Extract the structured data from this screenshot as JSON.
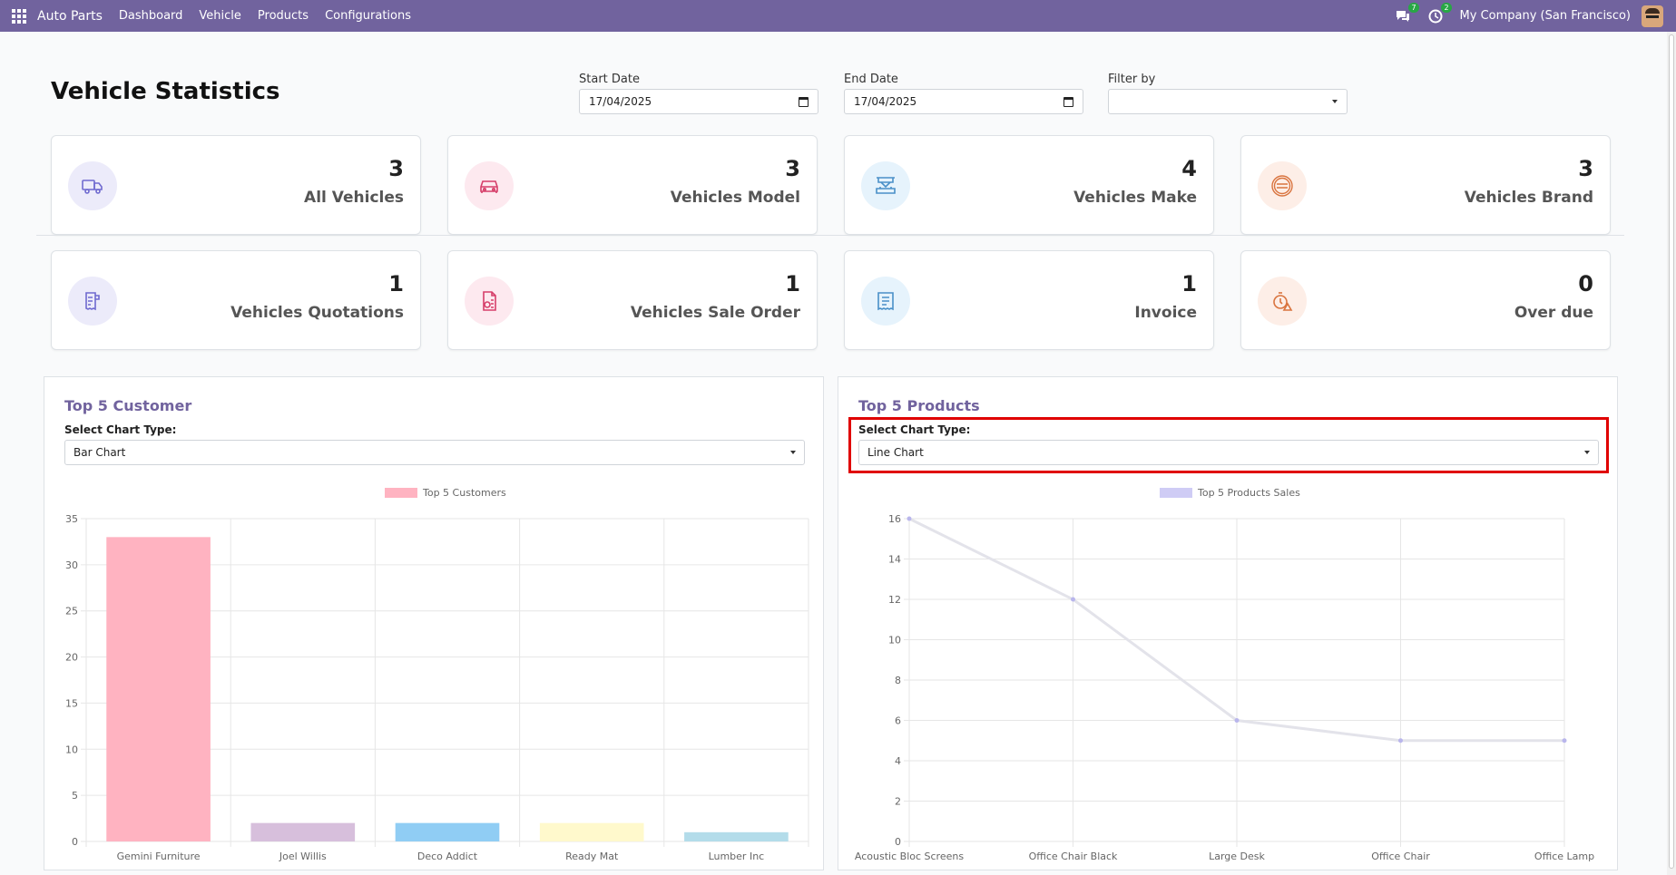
{
  "topbar": {
    "app_name": "Auto Parts",
    "menu": [
      "Dashboard",
      "Vehicle",
      "Products",
      "Configurations"
    ],
    "messages_badge": "7",
    "activities_badge": "2",
    "company": "My Company (San Francisco)"
  },
  "header": {
    "title": "Vehicle Statistics",
    "start_date_label": "Start Date",
    "start_date_value": "17/04/2025",
    "end_date_label": "End Date",
    "end_date_value": "17/04/2025",
    "filter_label": "Filter by",
    "filter_value": ""
  },
  "stats": [
    {
      "value": "3",
      "label": "All Vehicles",
      "icon": "truck-icon",
      "bg": "#ecebfa",
      "color": "#6f6ad0"
    },
    {
      "value": "3",
      "label": "Vehicles Model",
      "icon": "car-icon",
      "bg": "#fde9ef",
      "color": "#d63f6a"
    },
    {
      "value": "4",
      "label": "Vehicles Make",
      "icon": "factory-icon",
      "bg": "#e6f3fc",
      "color": "#4a90c8"
    },
    {
      "value": "3",
      "label": "Vehicles Brand",
      "icon": "brand-icon",
      "bg": "#fdeee7",
      "color": "#d9743f"
    },
    {
      "value": "1",
      "label": "Vehicles Quotations",
      "icon": "quotation-icon",
      "bg": "#ecebfa",
      "color": "#6f6ad0"
    },
    {
      "value": "1",
      "label": "Vehicles Sale Order",
      "icon": "sale-order-icon",
      "bg": "#fde9ef",
      "color": "#d63f6a"
    },
    {
      "value": "1",
      "label": "Invoice",
      "icon": "invoice-icon",
      "bg": "#e6f3fc",
      "color": "#4a90c8"
    },
    {
      "value": "0",
      "label": "Over due",
      "icon": "overdue-icon",
      "bg": "#fdeee7",
      "color": "#d9743f"
    }
  ],
  "customers_panel": {
    "title": "Top 5 Customer",
    "select_label": "Select Chart Type:",
    "select_value": "Bar Chart"
  },
  "products_panel": {
    "title": "Top 5 Products",
    "select_label": "Select Chart Type:",
    "select_value": "Line Chart"
  },
  "chart_data": [
    {
      "type": "bar",
      "categories": [
        "Gemini Furniture",
        "Joel Willis",
        "Deco Addict",
        "Ready Mat",
        "Lumber Inc"
      ],
      "series": [
        {
          "name": "Top 5 Customers",
          "values": [
            33,
            2,
            2,
            2,
            1
          ]
        }
      ],
      "bar_colors": [
        "#ffb3c1",
        "#d7bfdc",
        "#90cdf4",
        "#fff9cc",
        "#b3dcea"
      ],
      "legend_color": "#ffb3c1",
      "ylim": [
        0,
        35
      ],
      "yticks": [
        0,
        5,
        10,
        15,
        20,
        25,
        30,
        35
      ],
      "grid": true,
      "legend": "top-center"
    },
    {
      "type": "line",
      "categories": [
        "Acoustic Bloc Screens",
        "Office Chair Black",
        "Large Desk",
        "Office Chair",
        "Office Lamp"
      ],
      "series": [
        {
          "name": "Top 5 Products Sales",
          "values": [
            16,
            12,
            6,
            5,
            5
          ]
        }
      ],
      "line_color": "#e3e3ea",
      "point_color": "#b9b6ec",
      "legend_color": "#cfccf5",
      "ylim": [
        0,
        16
      ],
      "yticks": [
        0,
        2,
        4,
        6,
        8,
        10,
        12,
        14,
        16
      ],
      "grid": true,
      "legend": "top-center"
    }
  ]
}
